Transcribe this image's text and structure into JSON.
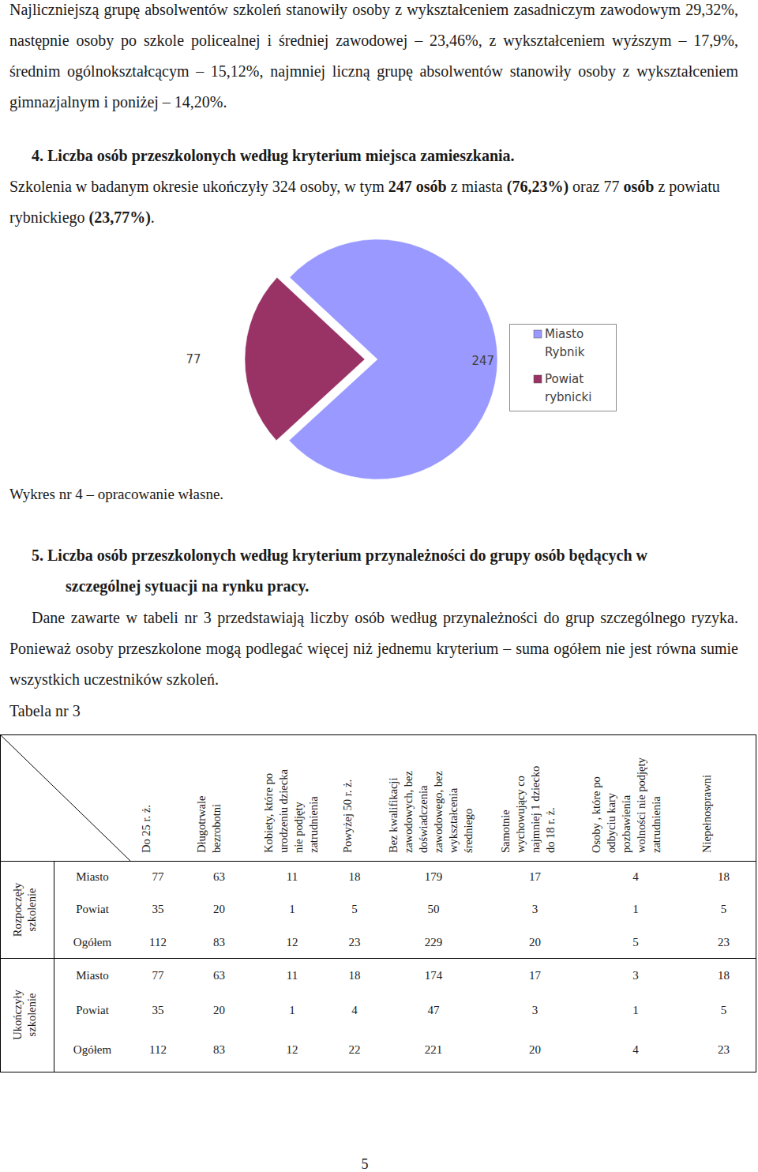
{
  "intro": "Najliczniejszą grupę absolwentów szkoleń stanowiły osoby z wykształceniem zasadniczym zawodowym 29,32%, następnie osoby po szkole policealnej i średniej zawodowej – 23,46%, z wykształceniem wyższym – 17,9%, średnim ogólnokształcącym – 15,12%, najmniej liczną grupę absolwentów stanowiły osoby z wykształceniem gimnazjalnym i poniżej – 14,20%.",
  "section_4": {
    "heading": "4. Liczba osób przeszkolonych według kryterium miejsca zamieszkania.",
    "text_runs": [
      {
        "text": "Szkolenia w badanym okresie ukończyły 324 osoby, w tym ",
        "bold": false
      },
      {
        "text": "247 osób",
        "bold": true
      },
      {
        "text": " z miasta ",
        "bold": false
      },
      {
        "text": "(76,23%)",
        "bold": true
      },
      {
        "text": " oraz 77 ",
        "bold": false
      },
      {
        "text": "osób",
        "bold": true
      },
      {
        "text": " z powiatu rybnickiego ",
        "bold": false
      },
      {
        "text": "(23,77%)",
        "bold": true
      },
      {
        "text": ".",
        "bold": false
      }
    ]
  },
  "chart_data": {
    "type": "pie",
    "categories": [
      "Miasto Rybnik",
      "Powiat rybnicki"
    ],
    "values": [
      247,
      77
    ],
    "colors": [
      "#9999ff",
      "#993366"
    ],
    "data_labels": true,
    "legend": "right"
  },
  "chart_caption": "Wykres nr 4 – opracowanie własne.",
  "section_5": {
    "heading": "5. Liczba osób przeszkolonych według kryterium przynależności do grupy osób będących w szczególnej sytuacji na rynku pracy.",
    "text": "Dane zawarte w tabeli nr 3 przedstawiają liczby osób według przynależności do grup szczególnego ryzyka. Ponieważ osoby przeszkolone mogą podlegać więcej niż jednemu kryterium – suma ogółem nie jest równa sumie wszystkich uczestników szkoleń."
  },
  "table": {
    "title": "Tabela nr 3",
    "columns": [
      "Do 25 r. ż.",
      "Długotrwale bezrobotni",
      "Kobiety, które po urodzeniu dziecka nie podjęty zatrudnienia",
      "Powyżej 50 r. ż.",
      "Bez kwalifikacji zawodowych, bez doświadczenia zawodowego, bez wykształcenia średniego",
      "Samotnie wychowujący co najmniej 1 dziecko do 18 r. ż.",
      "Osoby , które po odbyciu kary pozbawienia wolności nie podjęty zatrudnienia",
      "Niepełnosprawni"
    ],
    "groups": [
      {
        "label": "Rozpoczęły szkolenie",
        "rows": [
          {
            "label": "Miasto",
            "values": [
              77,
              63,
              11,
              18,
              179,
              17,
              4,
              18
            ]
          },
          {
            "label": "Powiat",
            "values": [
              35,
              20,
              1,
              5,
              50,
              3,
              1,
              5
            ]
          },
          {
            "label": "Ogółem",
            "values": [
              112,
              83,
              12,
              23,
              229,
              20,
              5,
              23
            ]
          }
        ]
      },
      {
        "label": "Ukończyły szkolenie",
        "rows": [
          {
            "label": "Miasto",
            "values": [
              77,
              63,
              11,
              18,
              174,
              17,
              3,
              18
            ]
          },
          {
            "label": "Powiat",
            "values": [
              35,
              20,
              1,
              4,
              47,
              3,
              1,
              5
            ]
          },
          {
            "label": "Ogółem",
            "values": [
              112,
              83,
              12,
              22,
              221,
              20,
              4,
              23
            ]
          }
        ]
      }
    ]
  },
  "page_number": "5"
}
